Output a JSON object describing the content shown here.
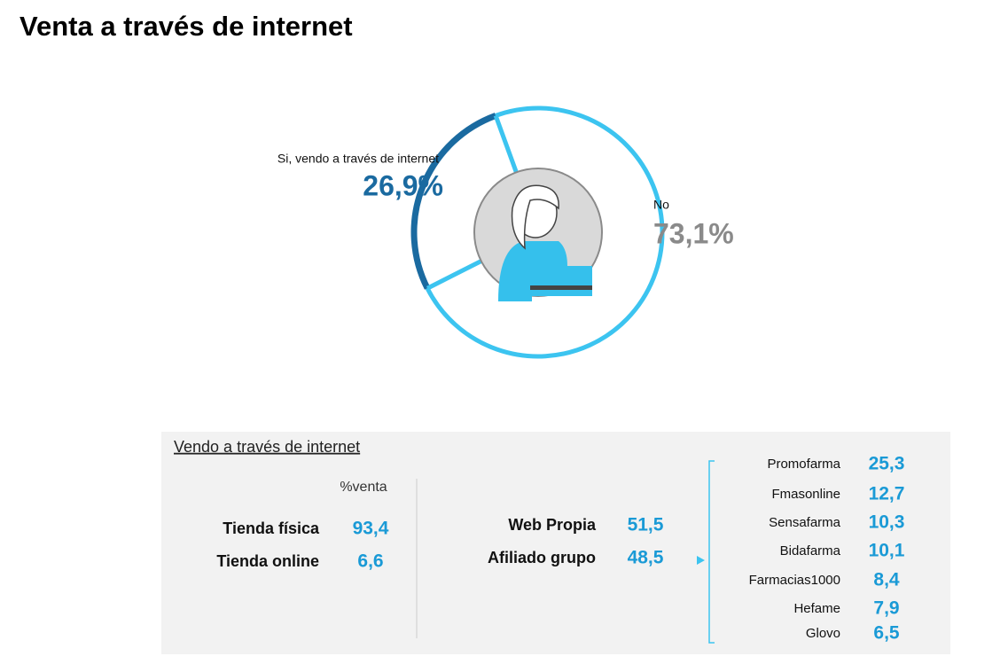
{
  "chart_data": {
    "type": "pie",
    "title": "Venta a través de internet",
    "categories": [
      "Si, vendo a través de internet",
      "No"
    ],
    "values": [
      26.9,
      73.1
    ],
    "value_labels": [
      "26,9%",
      "73,1%"
    ],
    "colors": [
      "#1a6aa0",
      "#3cc4f0"
    ]
  },
  "breakdown": {
    "title": "Vendo a través de internet",
    "column_header": "%venta",
    "channels": [
      [
        "Tienda física",
        "93,4"
      ],
      [
        "Tienda online",
        "6,6"
      ]
    ],
    "online_types": [
      [
        "Web Propia",
        "51,5"
      ],
      [
        "Afiliado grupo",
        "48,5"
      ]
    ],
    "platforms": [
      [
        "Promofarma",
        "25,3"
      ],
      [
        "Fmasonline",
        "12,7"
      ],
      [
        "Sensafarma",
        "10,3"
      ],
      [
        "Bidafarma",
        "10,1"
      ],
      [
        "Farmacias1000",
        "8,4"
      ],
      [
        "Hefame",
        "7,9"
      ],
      [
        "Glovo",
        "6,5"
      ]
    ]
  }
}
